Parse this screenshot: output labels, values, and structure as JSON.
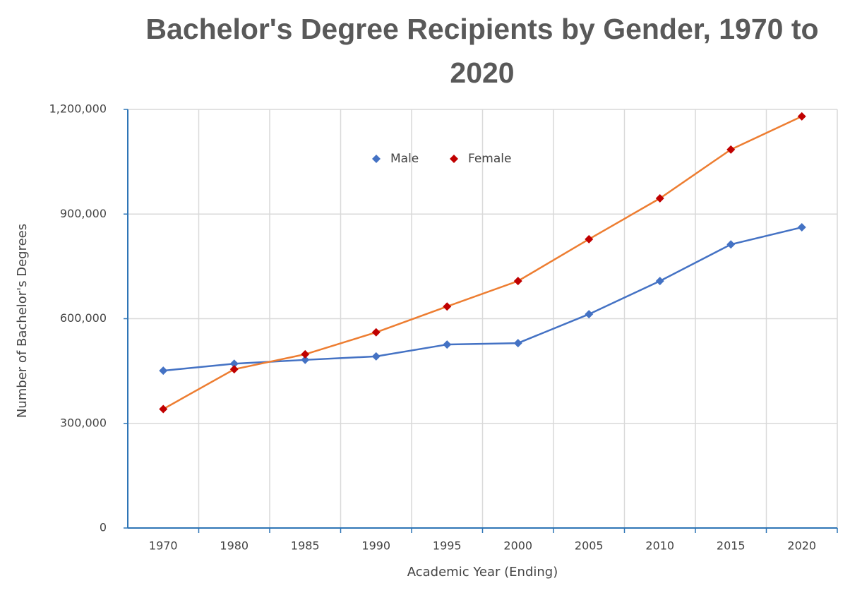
{
  "chart_data": {
    "type": "line",
    "title": "Bachelor's Degree Recipients by Gender, 1970 to 2020",
    "x_label": "Academic Year (Ending)",
    "y_label": "Number of Bachelor's Degrees",
    "categories": [
      "1970",
      "1980",
      "1985",
      "1990",
      "1995",
      "2000",
      "2005",
      "2010",
      "2015",
      "2020"
    ],
    "series": [
      {
        "name": "Male",
        "color": "#4472c4",
        "marker_color": "#4472c4",
        "values": [
          451000,
          471000,
          482000,
          492000,
          526000,
          530000,
          613000,
          708000,
          813000,
          862000
        ]
      },
      {
        "name": "Female",
        "color": "#ed7d31",
        "marker_color": "#c00000",
        "values": [
          341000,
          455000,
          498000,
          561000,
          635000,
          708000,
          828000,
          945000,
          1085000,
          1180000
        ]
      }
    ],
    "ylim": [
      0,
      1200000
    ],
    "yticks": [
      0,
      {
        "value": 300000,
        "label": "300,000"
      },
      {
        "value": 600000,
        "label": "600,000"
      },
      {
        "value": 900000,
        "label": "900,000"
      },
      {
        "value": 1200000,
        "label": "1,200,000"
      }
    ],
    "grid": true,
    "legend": "top"
  }
}
